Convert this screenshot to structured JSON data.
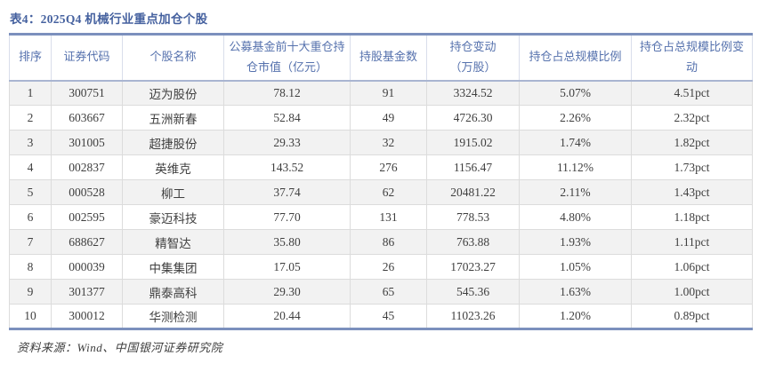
{
  "title": "表4：2025Q4 机械行业重点加仓个股",
  "table": {
    "headers": [
      "排序",
      "证券代码",
      "个股名称",
      "公募基金前十大重仓持\n仓市值（亿元）",
      "持股基金数",
      "持仓变动\n（万股）",
      "持仓占总规模比例",
      "持仓占总规模比例变动"
    ],
    "rows": [
      [
        "1",
        "300751",
        "迈为股份",
        "78.12",
        "91",
        "3324.52",
        "5.07%",
        "4.51pct"
      ],
      [
        "2",
        "603667",
        "五洲新春",
        "52.84",
        "49",
        "4726.30",
        "2.26%",
        "2.32pct"
      ],
      [
        "3",
        "301005",
        "超捷股份",
        "29.33",
        "32",
        "1915.02",
        "1.74%",
        "1.82pct"
      ],
      [
        "4",
        "002837",
        "英维克",
        "143.52",
        "276",
        "1156.47",
        "11.12%",
        "1.73pct"
      ],
      [
        "5",
        "000528",
        "柳工",
        "37.74",
        "62",
        "20481.22",
        "2.11%",
        "1.43pct"
      ],
      [
        "6",
        "002595",
        "豪迈科技",
        "77.70",
        "131",
        "778.53",
        "4.80%",
        "1.18pct"
      ],
      [
        "7",
        "688627",
        "精智达",
        "35.80",
        "86",
        "763.88",
        "1.93%",
        "1.11pct"
      ],
      [
        "8",
        "000039",
        "中集集团",
        "17.05",
        "26",
        "17023.27",
        "1.05%",
        "1.06pct"
      ],
      [
        "9",
        "301377",
        "鼎泰高科",
        "29.30",
        "65",
        "545.36",
        "1.63%",
        "1.00pct"
      ],
      [
        "10",
        "300012",
        "华测检测",
        "20.44",
        "45",
        "11023.26",
        "1.20%",
        "0.89pct"
      ]
    ]
  },
  "footer": {
    "source": "资料来源：Wind、中国银河证券研究院"
  },
  "colors": {
    "title_text": "#45619f",
    "header_text": "#5571ad",
    "table_outer_border": "#7c90bd",
    "header_underline": "#a9b5d1",
    "cell_border": "#dcdcdc",
    "stripe_row_bg": "#f2f2f2",
    "body_text": "#3f3f3f"
  }
}
